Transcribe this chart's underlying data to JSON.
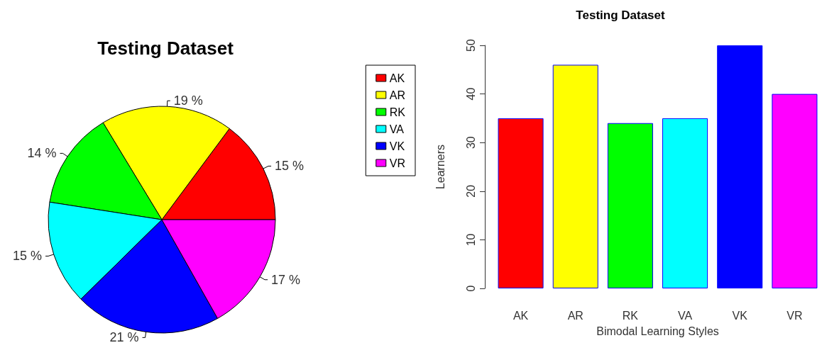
{
  "chart_data": [
    {
      "type": "pie",
      "title": "Testing Dataset",
      "categories": [
        "AK",
        "AR",
        "RK",
        "VA",
        "VK",
        "VR"
      ],
      "values": [
        15,
        19,
        14,
        15,
        21,
        17
      ],
      "value_labels": [
        "15 %",
        "19 %",
        "14 %",
        "15 %",
        "21 %",
        "17 %"
      ],
      "colors": [
        "#ff0000",
        "#ffff00",
        "#00ff00",
        "#00ffff",
        "#0000ff",
        "#ff00ff"
      ],
      "legend": "right"
    },
    {
      "type": "bar",
      "title": "Testing Dataset",
      "xlabel": "Bimodal Learning Styles",
      "ylabel": "Learners",
      "categories": [
        "AK",
        "AR",
        "RK",
        "VA",
        "VK",
        "VR"
      ],
      "values": [
        35,
        46,
        34,
        35,
        50,
        40
      ],
      "colors": [
        "#ff0000",
        "#ffff00",
        "#00ff00",
        "#00ffff",
        "#0000ff",
        "#ff00ff"
      ],
      "ylim": [
        0,
        50
      ],
      "yticks": [
        0,
        10,
        20,
        30,
        40,
        50
      ],
      "grid": false,
      "legend": false
    }
  ]
}
